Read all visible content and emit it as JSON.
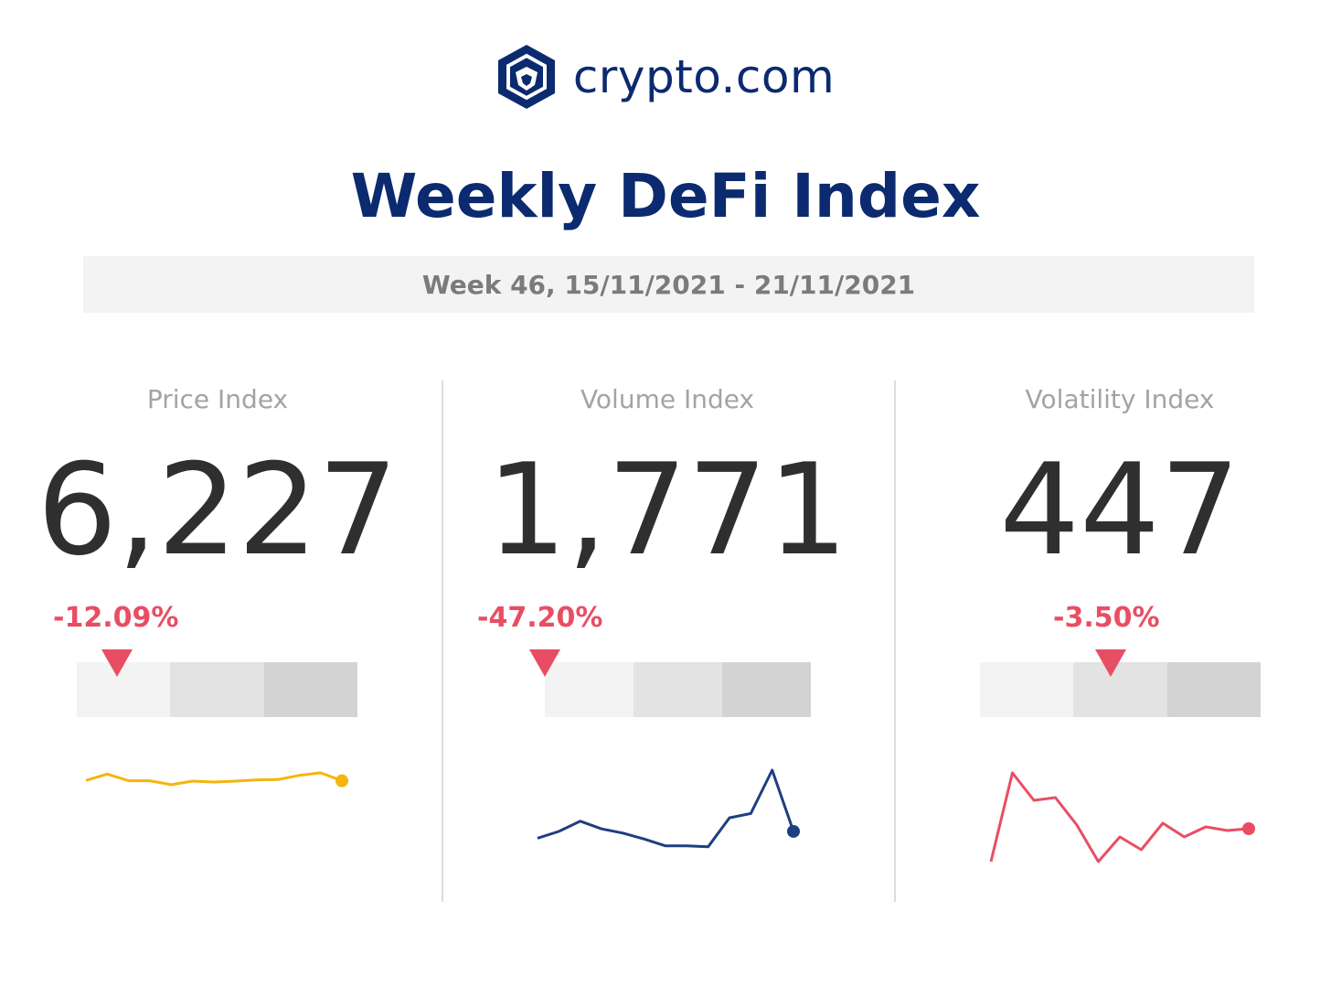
{
  "brand": {
    "name": "crypto.com",
    "logo": "crypto-com-lion-shield-logo",
    "color": "#0b2a6f"
  },
  "title": "Weekly DeFi Index",
  "week_label": "Week 46, 15/11/2021 - 21/11/2021",
  "colors": {
    "negative": "#e84e63",
    "price_line": "#f5b50f",
    "volume_line": "#1e3f80",
    "volatility_line": "#e84e63",
    "value_text": "#2e2e2e",
    "label_text": "#a3a3a3"
  },
  "indices": [
    {
      "label": "Price Index",
      "value": "6,227",
      "change": "-12.09%",
      "scale_position": 0.15,
      "line_color": "#f5b50f"
    },
    {
      "label": "Volume Index",
      "value": "1,771",
      "change": "-47.20%",
      "scale_position": 0.0,
      "line_color": "#1e3f80"
    },
    {
      "label": "Volatility Index",
      "value": "447",
      "change": "-3.50%",
      "scale_position": 0.46,
      "line_color": "#e84e63"
    }
  ],
  "chart_data": [
    {
      "type": "line",
      "title": "Price Index",
      "series": [
        {
          "values": [
            62,
            82,
            61,
            61,
            49,
            60,
            57,
            60,
            64,
            65,
            78,
            86,
            61
          ]
        }
      ],
      "ylim": [
        0,
        100
      ]
    },
    {
      "type": "line",
      "title": "Volume Index",
      "series": [
        {
          "values": [
            20,
            28,
            40,
            31,
            26,
            19,
            11,
            11,
            10,
            44,
            49,
            100,
            28
          ]
        }
      ],
      "ylim": [
        0,
        100
      ]
    },
    {
      "type": "line",
      "title": "Volatility Index",
      "series": [
        {
          "values": [
            0,
            97,
            67,
            70,
            40,
            0,
            27,
            13,
            42,
            27,
            38,
            34,
            36
          ]
        }
      ],
      "ylim": [
        0,
        100
      ]
    }
  ]
}
